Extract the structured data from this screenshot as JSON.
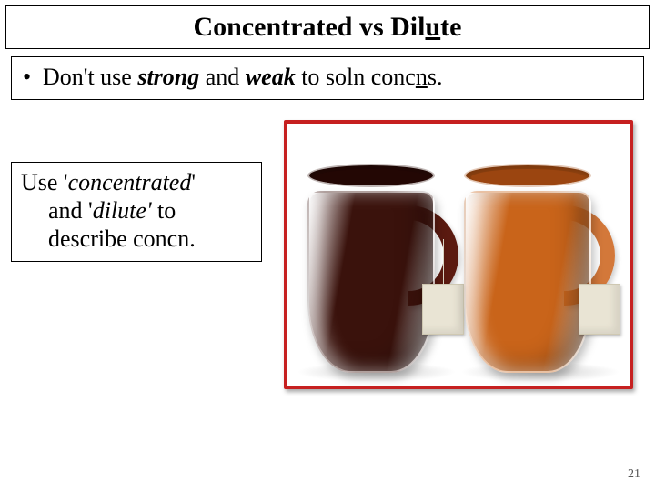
{
  "title": {
    "pre": "Concentrated vs Dil",
    "underlined": "u",
    "post": "te"
  },
  "bullet": {
    "pre": "Don't use ",
    "strong_word": "strong",
    "mid": " and ",
    "weak_word": "weak",
    "rest_pre": " to soln conc",
    "rest_under": "n",
    "rest_post": "s."
  },
  "caption": {
    "l1_pre": "Use '",
    "l1_it": "concentrated",
    "l1_post": "'",
    "l2_pre": "and '",
    "l2_it": "dilute'",
    "l2_post": " to",
    "l3": "describe concn."
  },
  "image": {
    "border_color": "#c62020",
    "mug_left": {
      "fill": "#3a120c",
      "rim": "#2a0b07",
      "handle": "#5b1a10",
      "surface": "#230704"
    },
    "mug_right": {
      "fill": "#c9641a",
      "rim": "#a84f13",
      "handle": "#d3783a",
      "surface": "#9b4510"
    }
  },
  "page_number": "21"
}
